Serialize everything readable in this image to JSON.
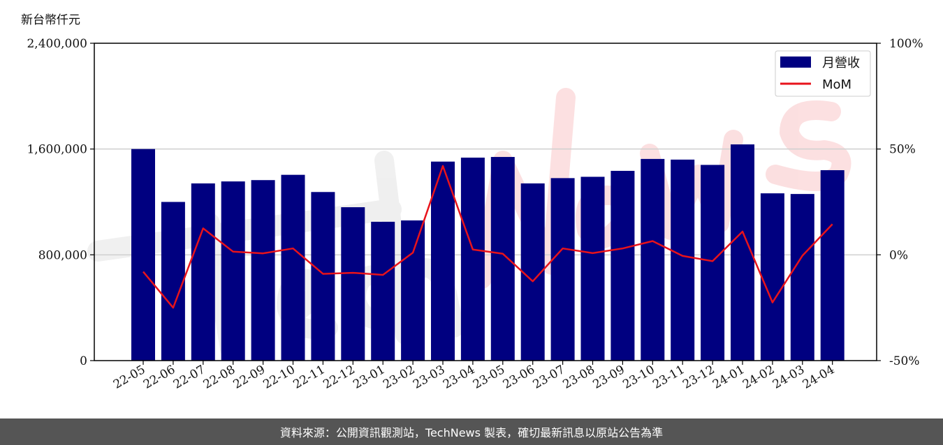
{
  "chart_data": {
    "type": "bar",
    "ylabel": "新台幣仟元",
    "categories": [
      "22-05",
      "22-06",
      "22-07",
      "22-08",
      "22-09",
      "22-10",
      "22-11",
      "22-12",
      "23-01",
      "23-02",
      "23-03",
      "23-04",
      "23-05",
      "23-06",
      "23-07",
      "23-08",
      "23-09",
      "23-10",
      "23-11",
      "23-12",
      "24-01",
      "24-02",
      "24-03",
      "24-04"
    ],
    "series": [
      {
        "name": "月營收",
        "type": "bar",
        "axis": "left",
        "color": "#000080",
        "values": [
          1600000,
          1200000,
          1340000,
          1355000,
          1365000,
          1405000,
          1275000,
          1160000,
          1050000,
          1060000,
          1505000,
          1535000,
          1540000,
          1340000,
          1380000,
          1390000,
          1435000,
          1525000,
          1520000,
          1480000,
          1635000,
          1265000,
          1260000,
          1440000
        ]
      },
      {
        "name": "MoM",
        "type": "line",
        "axis": "right",
        "color": "#e8131b",
        "values": [
          -8,
          -25,
          12.5,
          1.5,
          0.7,
          3,
          -9,
          -8.5,
          -9.5,
          1,
          42,
          2.5,
          0.5,
          -12.5,
          3,
          0.8,
          3,
          6.5,
          -0.5,
          -3,
          11,
          -22.5,
          -0.4,
          14.5
        ]
      }
    ],
    "ylim": [
      0,
      2400000
    ],
    "y_ticks": [
      "0",
      "800,000",
      "1,600,000",
      "2,400,000"
    ],
    "y2lim": [
      -50,
      100
    ],
    "y2_ticks": [
      "-50%",
      "0%",
      "50%",
      "100%"
    ],
    "grid": "horizontal",
    "legend": "top-right"
  },
  "footer": {
    "text": "資料來源：公開資訊觀測站，TechNews 製表，確切最新訊息以原站公告為準"
  }
}
